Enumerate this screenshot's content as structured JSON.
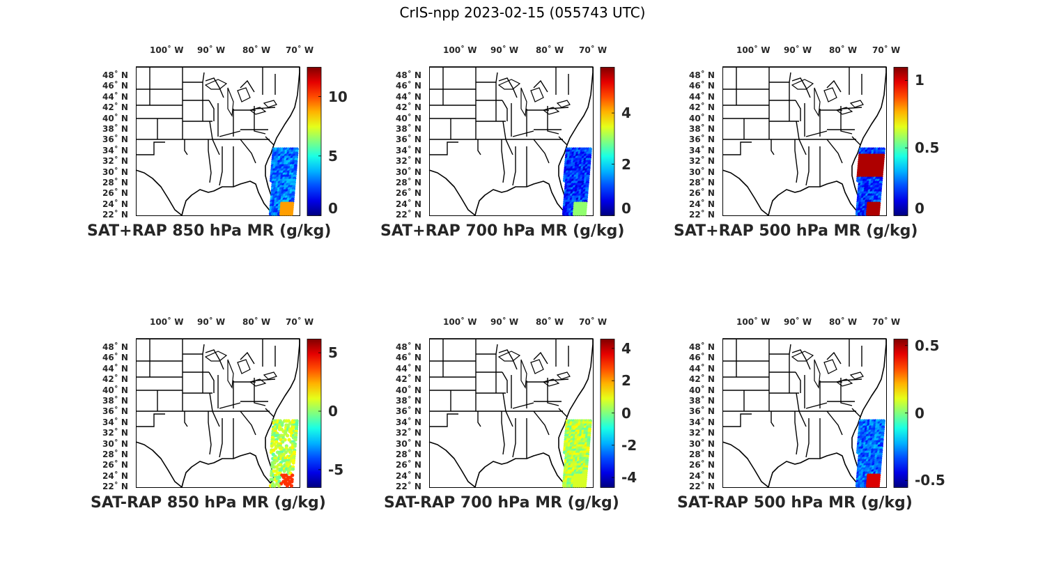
{
  "title": "CrIS-npp 2023-02-15 (055743 UTC)",
  "map": {
    "lon_ticks": [
      "100˚ W",
      "90˚ W",
      "80˚ W",
      "70˚ W"
    ],
    "lat_ticks": [
      "48˚ N",
      "46˚ N",
      "44˚ N",
      "42˚ N",
      "40˚ N",
      "38˚ N",
      "36˚ N",
      "34˚ N",
      "32˚ N",
      "30˚ N",
      "28˚ N",
      "26˚ N",
      "24˚ N",
      "22˚ N"
    ],
    "region": "Eastern United States"
  },
  "colormap": "jet",
  "panels": [
    {
      "title": "SAT+RAP 850 hPa MR (g/kg)",
      "clim": [
        0,
        12.5
      ],
      "ticks": [
        "10",
        "5",
        "0"
      ],
      "tick_values": [
        10,
        5,
        0
      ],
      "swath": "dense",
      "dominant_value": 3,
      "hot_corner_value": 9
    },
    {
      "title": "SAT+RAP 700 hPa MR (g/kg)",
      "clim": [
        0,
        5.8
      ],
      "ticks": [
        "4",
        "2",
        "0"
      ],
      "tick_values": [
        4,
        2,
        0
      ],
      "swath": "dense",
      "dominant_value": 1,
      "hot_corner_value": 3
    },
    {
      "title": "SAT+RAP 500 hPa MR (g/kg)",
      "clim": [
        0,
        1.1
      ],
      "ticks": [
        "1",
        "0.5",
        "0"
      ],
      "tick_values": [
        1,
        0.5,
        0
      ],
      "swath": "dense",
      "dominant_value": 0.2,
      "hot_corner_value": 1.05
    },
    {
      "title": "SAT-RAP 850 hPa MR (g/kg)",
      "clim": [
        -6.5,
        6.2
      ],
      "ticks": [
        "5",
        "0",
        "-5"
      ],
      "tick_values": [
        5,
        0,
        -5
      ],
      "swath": "patchy",
      "dominant_value": 0.5,
      "hot_corner_value": 4
    },
    {
      "title": "SAT-RAP 700 hPa MR (g/kg)",
      "clim": [
        -4.6,
        4.6
      ],
      "ticks": [
        "4",
        "2",
        "0",
        "-2",
        "-4"
      ],
      "tick_values": [
        4,
        2,
        0,
        -2,
        -4
      ],
      "swath": "dense",
      "dominant_value": 0.5,
      "hot_corner_value": 0.8
    },
    {
      "title": "SAT-RAP 500 hPa MR (g/kg)",
      "clim": [
        -0.55,
        0.55
      ],
      "ticks": [
        "0.5",
        "0",
        "-0.5"
      ],
      "tick_values": [
        0.5,
        0,
        -0.5
      ],
      "swath": "dense",
      "dominant_value": -0.3,
      "hot_corner_value": 0.45
    }
  ]
}
